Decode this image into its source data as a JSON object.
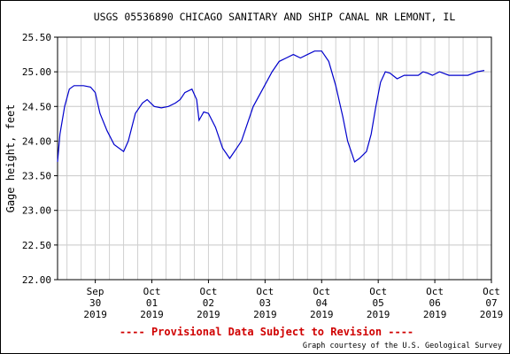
{
  "chart_data": {
    "type": "line",
    "title": "USGS 05536890 CHICAGO SANITARY AND SHIP CANAL NR LEMONT, IL",
    "ylabel": "Gage height, feet",
    "xlabel": "",
    "ylim": [
      22.0,
      25.5
    ],
    "yticks": [
      "25.50",
      "25.00",
      "24.50",
      "24.00",
      "23.50",
      "23.00",
      "22.50",
      "22.00"
    ],
    "xticks": [
      {
        "l1": "Sep",
        "l2": "30",
        "l3": "2019"
      },
      {
        "l1": "Oct",
        "l2": "01",
        "l3": "2019"
      },
      {
        "l1": "Oct",
        "l2": "02",
        "l3": "2019"
      },
      {
        "l1": "Oct",
        "l2": "03",
        "l3": "2019"
      },
      {
        "l1": "Oct",
        "l2": "04",
        "l3": "2019"
      },
      {
        "l1": "Oct",
        "l2": "05",
        "l3": "2019"
      },
      {
        "l1": "Oct",
        "l2": "06",
        "l3": "2019"
      },
      {
        "l1": "Oct",
        "l2": "07",
        "l3": "2019"
      }
    ],
    "x_start": "2019-09-29 20:00",
    "x_end": "2019-10-07 12:00",
    "grid": true,
    "series_color": "#0000cc",
    "series": [
      {
        "x": [
          "2019-09-29 20:00",
          "2019-09-29 21:00",
          "2019-09-29 23:00",
          "2019-09-30 01:00",
          "2019-09-30 03:00",
          "2019-09-30 07:00",
          "2019-09-30 10:00",
          "2019-09-30 12:00",
          "2019-09-30 14:00",
          "2019-09-30 17:00",
          "2019-09-30 20:00",
          "2019-10-01 00:00",
          "2019-10-01 02:00",
          "2019-10-01 05:00",
          "2019-10-01 08:00",
          "2019-10-01 10:00",
          "2019-10-01 13:00",
          "2019-10-01 16:00",
          "2019-10-01 19:00",
          "2019-10-01 22:00",
          "2019-10-02 00:00",
          "2019-10-02 02:00",
          "2019-10-02 05:00",
          "2019-10-02 07:00",
          "2019-10-02 08:00",
          "2019-10-02 10:00",
          "2019-10-02 12:00",
          "2019-10-02 15:00",
          "2019-10-02 18:00",
          "2019-10-02 21:00",
          "2019-10-03 00:00",
          "2019-10-03 02:00",
          "2019-10-03 04:00",
          "2019-10-03 07:00",
          "2019-10-03 11:00",
          "2019-10-03 15:00",
          "2019-10-03 18:00",
          "2019-10-03 21:00",
          "2019-10-04 00:00",
          "2019-10-04 03:00",
          "2019-10-04 06:00",
          "2019-10-04 09:00",
          "2019-10-04 12:00",
          "2019-10-04 15:00",
          "2019-10-04 18:00",
          "2019-10-04 21:00",
          "2019-10-04 23:00",
          "2019-10-05 01:00",
          "2019-10-05 02:00",
          "2019-10-05 04:00",
          "2019-10-05 07:00",
          "2019-10-05 09:00",
          "2019-10-05 11:00",
          "2019-10-05 13:00",
          "2019-10-05 15:00",
          "2019-10-05 17:00",
          "2019-10-05 20:00",
          "2019-10-05 23:00",
          "2019-10-06 02:00",
          "2019-10-06 05:00",
          "2019-10-06 07:00",
          "2019-10-06 09:00",
          "2019-10-06 11:00",
          "2019-10-06 14:00",
          "2019-10-06 18:00",
          "2019-10-06 22:00",
          "2019-10-07 02:00",
          "2019-10-07 06:00",
          "2019-10-07 09:00"
        ],
        "values": [
          23.7,
          24.1,
          24.5,
          24.75,
          24.8,
          24.8,
          24.78,
          24.7,
          24.4,
          24.15,
          23.95,
          23.85,
          24.0,
          24.4,
          24.55,
          24.6,
          24.5,
          24.48,
          24.5,
          24.55,
          24.6,
          24.7,
          24.75,
          24.6,
          24.3,
          24.42,
          24.4,
          24.2,
          23.9,
          23.75,
          23.9,
          24.0,
          24.2,
          24.5,
          24.75,
          25.0,
          25.15,
          25.2,
          25.25,
          25.2,
          25.25,
          25.3,
          25.3,
          25.15,
          24.8,
          24.35,
          24.0,
          23.8,
          23.7,
          23.75,
          23.85,
          24.1,
          24.5,
          24.85,
          25.0,
          24.98,
          24.9,
          24.95,
          24.95,
          24.95,
          25.0,
          24.98,
          24.95,
          25.0,
          24.95,
          24.95,
          24.95,
          25.0,
          25.02
        ]
      }
    ]
  },
  "footer": {
    "provisional": "---- Provisional Data Subject to Revision ----",
    "credit": "Graph courtesy of the U.S. Geological Survey"
  }
}
